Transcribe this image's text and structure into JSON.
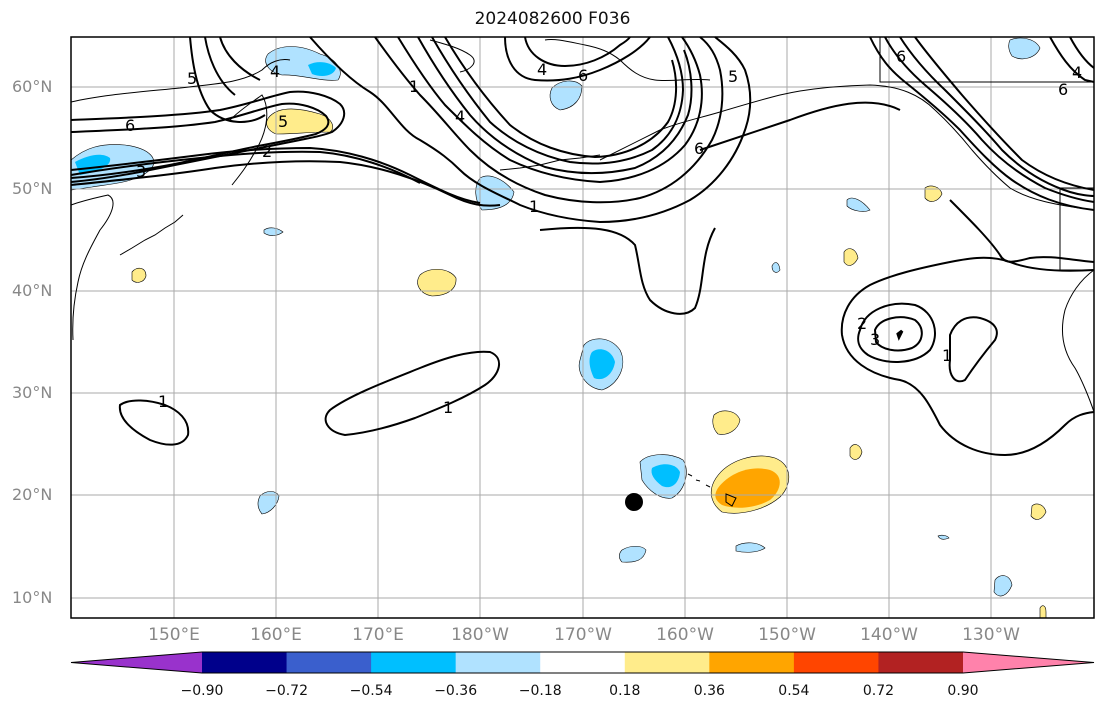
{
  "title": "2024082600 F036",
  "latitude_labels": [
    "60°N",
    "50°N",
    "40°N",
    "30°N",
    "20°N",
    "10°N"
  ],
  "longitude_labels": [
    "150°E",
    "160°E",
    "170°E",
    "180°W",
    "170°W",
    "160°W",
    "150°W",
    "140°W",
    "130°W"
  ],
  "contour_labels": [
    "6",
    "5",
    "4",
    "3",
    "2",
    "1"
  ],
  "colorbar": {
    "tick_labels": [
      "−0.90",
      "−0.72",
      "−0.54",
      "−0.36",
      "−0.18",
      "0.18",
      "0.36",
      "0.54",
      "0.72",
      "0.90"
    ],
    "colors": [
      "#9932cc",
      "#00008b",
      "#3a5fcd",
      "#00bfff",
      "#b0e2ff",
      "#ffffff",
      "#ffec8b",
      "#ffa500",
      "#ff4500",
      "#b22222",
      "#ff82ab"
    ]
  },
  "colors": {
    "grid": "#aaaaaa",
    "contour": "#000000",
    "light_blue": "#b0e2ff",
    "blue": "#00bfff",
    "light_yellow": "#ffec8b",
    "orange": "#ffa500"
  },
  "marker": "filled-circle"
}
